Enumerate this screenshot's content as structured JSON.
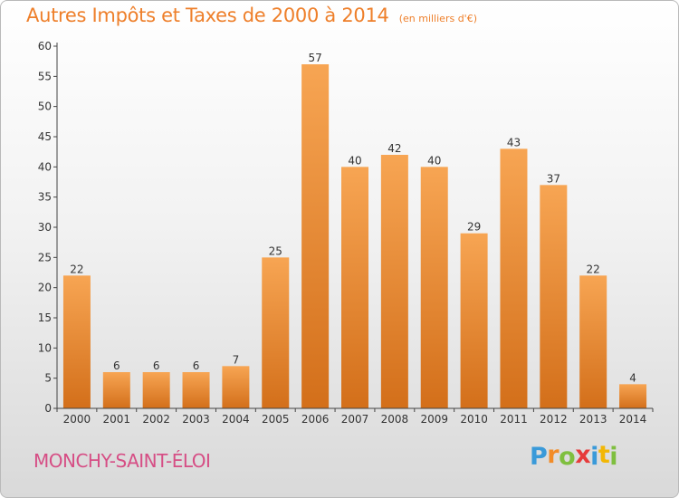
{
  "title": "Autres Impôts et Taxes de 2000 à 2014",
  "unit_note": "(en milliers d'€)",
  "commune": "MONCHY-SAINT-ÉLOI",
  "logo": {
    "text": "Proxiti",
    "letters": [
      {
        "ch": "P",
        "color": "#3a9ad9"
      },
      {
        "ch": "r",
        "color": "#f28c28"
      },
      {
        "ch": "o",
        "color": "#7fbf3f"
      },
      {
        "ch": "x",
        "color": "#e63b3b"
      },
      {
        "ch": "i",
        "color": "#3a9ad9"
      },
      {
        "ch": "t",
        "color": "#f2b705"
      },
      {
        "ch": "i",
        "color": "#7fbf3f"
      }
    ]
  },
  "colors": {
    "title": "#ee7f2a",
    "commune": "#d64e85",
    "bar_light": "#f7a553",
    "bar_dark": "#d36f1a",
    "axis": "#444444"
  },
  "chart_data": {
    "type": "bar",
    "categories": [
      "2000",
      "2001",
      "2002",
      "2003",
      "2004",
      "2005",
      "2006",
      "2007",
      "2008",
      "2009",
      "2010",
      "2011",
      "2012",
      "2013",
      "2014"
    ],
    "values": [
      22,
      6,
      6,
      6,
      7,
      25,
      57,
      40,
      42,
      40,
      29,
      43,
      37,
      22,
      4
    ],
    "ylim": [
      0,
      60
    ],
    "yticks": [
      0,
      5,
      10,
      15,
      20,
      25,
      30,
      35,
      40,
      45,
      50,
      55,
      60
    ],
    "grid": false,
    "data_labels": true
  }
}
